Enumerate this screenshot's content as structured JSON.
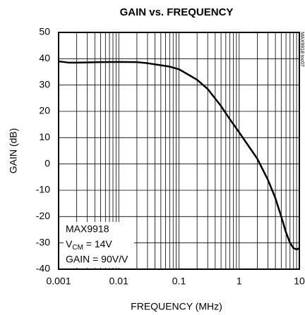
{
  "chart_data": {
    "type": "line",
    "title": "GAIN vs. FREQUENCY",
    "xlabel": "FREQUENCY (MHz)",
    "ylabel": "GAIN (dB)",
    "xscale": "log",
    "grid": true,
    "xlim": [
      0.001,
      10
    ],
    "xticks": [
      0.001,
      0.01,
      0.1,
      1,
      10
    ],
    "xminorticks": [
      0.002,
      0.003,
      0.004,
      0.005,
      0.006,
      0.007,
      0.008,
      0.009,
      0.02,
      0.03,
      0.04,
      0.05,
      0.06,
      0.07,
      0.08,
      0.09,
      0.2,
      0.3,
      0.4,
      0.5,
      0.6,
      0.7,
      0.8,
      0.9,
      2,
      3,
      4,
      5,
      6,
      7,
      8,
      9
    ],
    "ylim": [
      -40,
      50
    ],
    "yticks": [
      -40,
      -30,
      -20,
      -10,
      0,
      10,
      20,
      30,
      40,
      50
    ],
    "annotations": [
      "MAX9918",
      "GAIN = 90V/V"
    ],
    "vcm": {
      "symbol": "V",
      "subscript": "CM",
      "text": " = 14V"
    },
    "side_note": "MAX9918 toc07",
    "series": [
      {
        "name": "GAIN",
        "color": "#000000",
        "x": [
          0.001,
          0.0015,
          0.002,
          0.005,
          0.01,
          0.02,
          0.03,
          0.05,
          0.07,
          0.1,
          0.2,
          0.3,
          0.5,
          0.7,
          1,
          2,
          3,
          4,
          5,
          6,
          7,
          8,
          9,
          10
        ],
        "values": [
          39,
          38.5,
          38.5,
          38.7,
          38.8,
          38.7,
          38.3,
          37.5,
          37,
          36,
          32,
          28.5,
          22,
          17,
          12,
          2,
          -6,
          -13,
          -20,
          -26,
          -30,
          -32,
          -32.5,
          -32
        ]
      }
    ]
  }
}
